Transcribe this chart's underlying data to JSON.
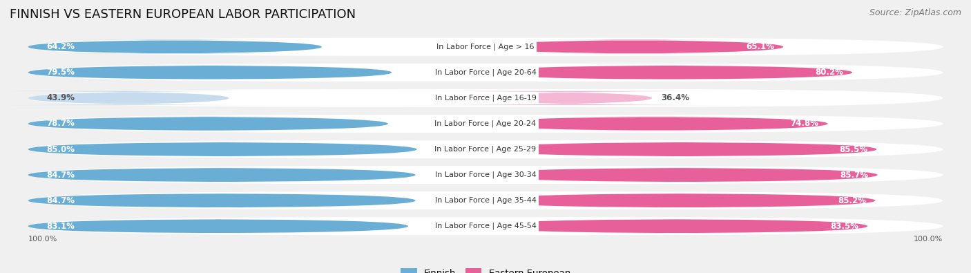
{
  "title": "FINNISH VS EASTERN EUROPEAN LABOR PARTICIPATION",
  "source": "Source: ZipAtlas.com",
  "categories": [
    "In Labor Force | Age > 16",
    "In Labor Force | Age 20-64",
    "In Labor Force | Age 16-19",
    "In Labor Force | Age 20-24",
    "In Labor Force | Age 25-29",
    "In Labor Force | Age 30-34",
    "In Labor Force | Age 35-44",
    "In Labor Force | Age 45-54"
  ],
  "finnish_values": [
    64.2,
    79.5,
    43.9,
    78.7,
    85.0,
    84.7,
    84.7,
    83.1
  ],
  "eastern_values": [
    65.1,
    80.2,
    36.4,
    74.8,
    85.5,
    85.7,
    85.2,
    83.5
  ],
  "finnish_color_full": "#6aaed6",
  "finnish_color_light": "#c6dcee",
  "eastern_color_full": "#e8609a",
  "eastern_color_light": "#f4b8d4",
  "label_color_dark": "#555555",
  "max_val": 100.0,
  "legend_finnish": "Finnish",
  "legend_eastern": "Eastern European",
  "bg_color": "#f0f0f0",
  "row_bg": "#ffffff",
  "title_fontsize": 13,
  "source_fontsize": 9,
  "label_fontsize": 8.5,
  "cat_fontsize": 8,
  "bottom_label": "100.0%"
}
